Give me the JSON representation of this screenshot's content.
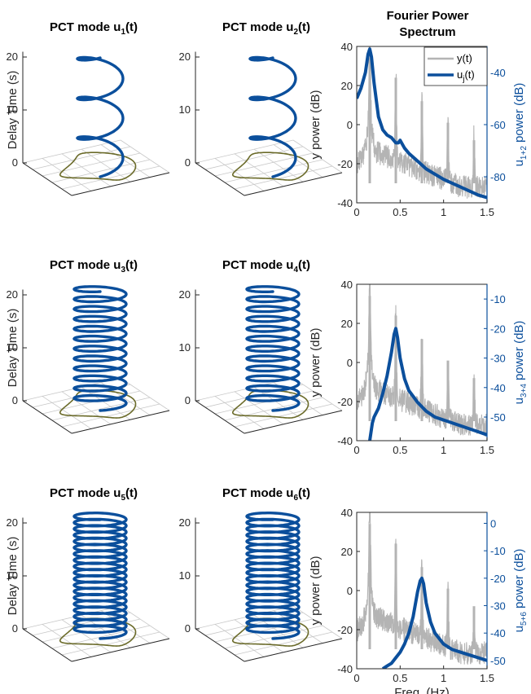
{
  "colors": {
    "helix": "#0b4f9c",
    "trajectory": "#6b6b2a",
    "grid": "#c8c8c8",
    "y_spectrum": "#b4b4b4",
    "u_spectrum": "#0b4f9c",
    "right_axis": "#0b4f9c"
  },
  "chart_data": [
    {
      "type": "line3d",
      "title": "PCT mode u",
      "title_sub": "1",
      "title_end": "(t)",
      "zlabel": "Delay Time (s)",
      "zticks": [
        "0",
        "10",
        "20"
      ],
      "zlim": [
        0,
        20
      ],
      "turns": 3
    },
    {
      "type": "line3d",
      "title": "PCT mode u",
      "title_sub": "2",
      "title_end": "(t)",
      "zlabel": "",
      "zticks": [
        "0",
        "10",
        "20"
      ],
      "zlim": [
        0,
        20
      ],
      "turns": 3
    },
    {
      "type": "line",
      "title": "Fourier Power",
      "title2": "Spectrum",
      "xlabel": "",
      "xlim": [
        0,
        1.5
      ],
      "xticks": [
        "0",
        "0.5",
        "1",
        "1.5"
      ],
      "ylabel": "y power (dB)",
      "ylim": [
        -40,
        40
      ],
      "yticks": [
        "-40",
        "-20",
        "0",
        "20",
        "40"
      ],
      "y2label_main": "u",
      "y2label_sub": "1+2",
      "y2label_end": " power (dB)",
      "y2lim": [
        -90,
        -30
      ],
      "y2ticks": [
        "-80",
        "-60",
        "-40"
      ],
      "legend": {
        "position": "top-right",
        "entries": [
          {
            "label": "y(t)",
            "sub": ""
          },
          {
            "label": "u",
            "sub": "j",
            "end": "(t)"
          }
        ]
      },
      "y_series": {
        "name": "y(t)",
        "peaks": [
          0.15,
          0.45,
          0.75,
          1.05,
          1.35
        ],
        "peak_heights": [
          34,
          24,
          12,
          1,
          -8
        ]
      },
      "u_series": {
        "name": "u_j(t)",
        "x": [
          0,
          0.05,
          0.1,
          0.13,
          0.15,
          0.17,
          0.2,
          0.25,
          0.3,
          0.35,
          0.4,
          0.45,
          0.48,
          0.5,
          0.55,
          0.6,
          0.7,
          0.8,
          0.9,
          1.0,
          1.2,
          1.4,
          1.5
        ],
        "y": [
          -50,
          -46,
          -40,
          -33,
          -31,
          -34,
          -44,
          -57,
          -62,
          -64,
          -65,
          -67,
          -67,
          -66,
          -69,
          -71,
          -74,
          -77,
          -79,
          -81,
          -84,
          -87,
          -88
        ]
      }
    },
    {
      "type": "line3d",
      "title": "PCT mode u",
      "title_sub": "3",
      "title_end": "(t)",
      "zlabel": "Delay Time (s)",
      "zticks": [
        "0",
        "10",
        "20"
      ],
      "zlim": [
        0,
        20
      ],
      "turns": 12
    },
    {
      "type": "line3d",
      "title": "PCT mode u",
      "title_sub": "4",
      "title_end": "(t)",
      "zlabel": "",
      "zticks": [
        "0",
        "10",
        "20"
      ],
      "zlim": [
        0,
        20
      ],
      "turns": 12
    },
    {
      "type": "line",
      "title": "",
      "title2": "",
      "xlabel": "",
      "xlim": [
        0,
        1.5
      ],
      "xticks": [
        "0",
        "0.5",
        "1",
        "1.5"
      ],
      "ylabel": "y power (dB)",
      "ylim": [
        -40,
        40
      ],
      "yticks": [
        "-40",
        "-20",
        "0",
        "20",
        "40"
      ],
      "y2label_main": "u",
      "y2label_sub": "3+4",
      "y2label_end": " power (dB)",
      "y2lim": [
        -58,
        -5
      ],
      "y2ticks": [
        "-50",
        "-40",
        "-30",
        "-20",
        "-10"
      ],
      "y_series": {
        "name": "y(t)",
        "peaks": [
          0.15,
          0.45,
          0.75,
          1.05,
          1.35
        ],
        "peak_heights": [
          34,
          24,
          12,
          1,
          -8
        ]
      },
      "u_series": {
        "name": "u_j(t)",
        "x": [
          0.15,
          0.18,
          0.2,
          0.25,
          0.3,
          0.35,
          0.4,
          0.43,
          0.45,
          0.47,
          0.5,
          0.55,
          0.6,
          0.7,
          0.8,
          0.9,
          1.0,
          1.2,
          1.4,
          1.5
        ],
        "y": [
          -58,
          -52,
          -50,
          -47,
          -42,
          -36,
          -28,
          -22,
          -20,
          -23,
          -30,
          -37,
          -41,
          -45,
          -48,
          -50,
          -51,
          -53,
          -55,
          -56
        ]
      }
    },
    {
      "type": "line3d",
      "title": "PCT mode u",
      "title_sub": "5",
      "title_end": "(t)",
      "zlabel": "Delay Time (s)",
      "zticks": [
        "0",
        "10",
        "20"
      ],
      "zlim": [
        0,
        20
      ],
      "turns": 19
    },
    {
      "type": "line3d",
      "title": "PCT mode u",
      "title_sub": "6",
      "title_end": "(t)",
      "zlabel": "",
      "zticks": [
        "0",
        "10",
        "20"
      ],
      "zlim": [
        0,
        20
      ],
      "turns": 19
    },
    {
      "type": "line",
      "title": "",
      "title2": "",
      "xlabel": "Freq. (Hz)",
      "xlim": [
        0,
        1.5
      ],
      "xticks": [
        "0",
        "0.5",
        "1",
        "1.5"
      ],
      "ylabel": "y power (dB)",
      "ylim": [
        -40,
        40
      ],
      "yticks": [
        "-40",
        "-20",
        "0",
        "20",
        "40"
      ],
      "y2label_main": "u",
      "y2label_sub": "5+6",
      "y2label_end": " power (dB)",
      "y2lim": [
        -53,
        4
      ],
      "y2ticks": [
        "-50",
        "-40",
        "-30",
        "-20",
        "-10",
        "0"
      ],
      "y_series": {
        "name": "y(t)",
        "peaks": [
          0.15,
          0.45,
          0.75,
          1.05,
          1.35
        ],
        "peak_heights": [
          34,
          24,
          12,
          1,
          -8
        ]
      },
      "u_series": {
        "name": "u_j(t)",
        "x": [
          0.3,
          0.35,
          0.4,
          0.45,
          0.5,
          0.55,
          0.6,
          0.65,
          0.7,
          0.73,
          0.75,
          0.77,
          0.8,
          0.85,
          0.9,
          1.0,
          1.1,
          1.2,
          1.3,
          1.4,
          1.5
        ],
        "y": [
          -53,
          -52,
          -51,
          -49,
          -47,
          -44,
          -40,
          -34,
          -25,
          -21,
          -20,
          -22,
          -29,
          -36,
          -40,
          -44,
          -46,
          -47,
          -48,
          -49,
          -50
        ]
      }
    }
  ]
}
